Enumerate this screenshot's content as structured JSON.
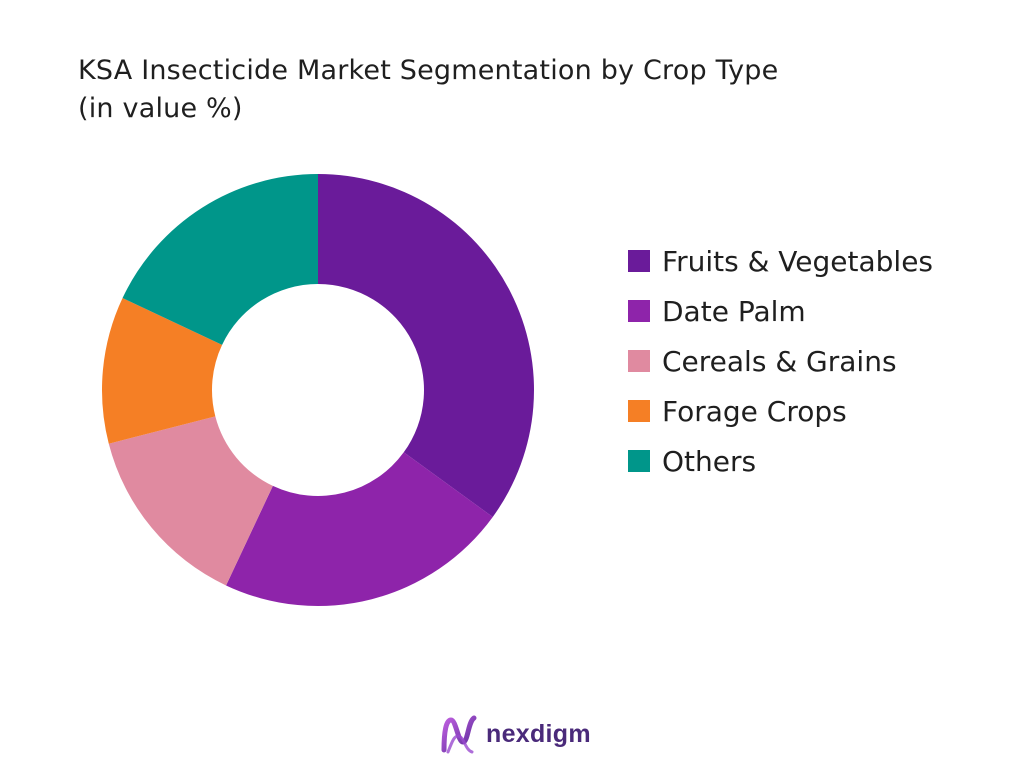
{
  "chart_data": {
    "type": "pie",
    "subtype": "donut",
    "title": "KSA Insecticide Market Segmentation by Crop Type",
    "subtitle": "(in value %)",
    "categories": [
      "Fruits & Vegetables",
      "Date Palm",
      "Cereals & Grains",
      "Forage Crops",
      "Others"
    ],
    "values": [
      35,
      22,
      14,
      11,
      18
    ],
    "colors": [
      "#6a1b9a",
      "#8e24aa",
      "#e08aa0",
      "#f57f25",
      "#00968a"
    ],
    "legend_position": "right"
  },
  "branding": {
    "logo_text": "nexdigm"
  }
}
